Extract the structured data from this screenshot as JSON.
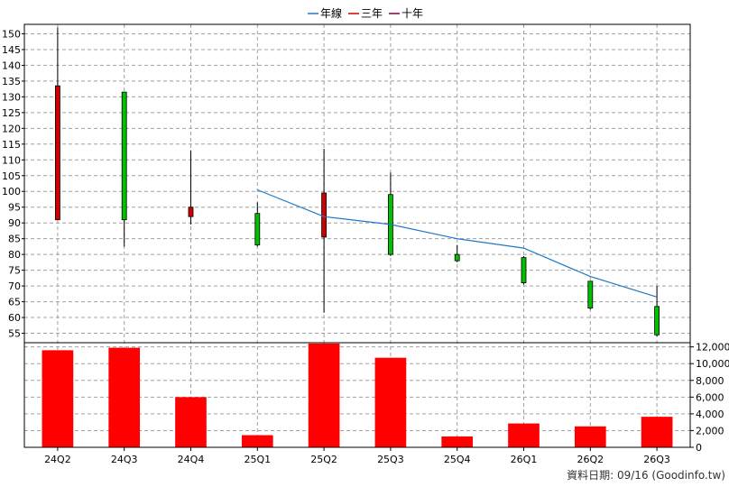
{
  "legend": [
    {
      "label": "年線",
      "color": "#1e78c8"
    },
    {
      "label": "三年",
      "color": "#d00000"
    },
    {
      "label": "十年",
      "color": "#800040"
    }
  ],
  "footer": "資料日期: 09/16  (Goodinfo.tw)",
  "chart_data": [
    {
      "type": "candlestick",
      "categories": [
        "24Q2",
        "24Q3",
        "24Q4",
        "25Q1",
        "25Q2",
        "25Q3",
        "25Q4",
        "26Q1",
        "26Q2",
        "26Q3"
      ],
      "ylim": [
        52,
        153
      ],
      "yticks": [
        55,
        60,
        65,
        70,
        75,
        80,
        85,
        90,
        95,
        100,
        105,
        110,
        115,
        120,
        125,
        130,
        135,
        140,
        145,
        150
      ],
      "grid": true,
      "up_color": "#d00000",
      "down_color": "#00c000",
      "candles": [
        {
          "open": 91,
          "close": 133.5,
          "high": 152,
          "low": 91
        },
        {
          "open": 131.5,
          "close": 91,
          "high": 131.5,
          "low": 82.5
        },
        {
          "open": 92,
          "close": 95,
          "high": 113,
          "low": 89.5
        },
        {
          "open": 93,
          "close": 83,
          "high": 96.5,
          "low": 82.5
        },
        {
          "open": 85.5,
          "close": 99.5,
          "high": 113.5,
          "low": 61.5
        },
        {
          "open": 99,
          "close": 80,
          "high": 106,
          "low": 79.5
        },
        {
          "open": 80,
          "close": 78,
          "high": 83,
          "low": 77.5
        },
        {
          "open": 79,
          "close": 71,
          "high": 79.5,
          "low": 70.5
        },
        {
          "open": 71.5,
          "close": 63,
          "high": 71.5,
          "low": 62.5
        },
        {
          "open": 63.5,
          "close": 54.5,
          "high": 70,
          "low": 54
        },
        {
          "_": "placeholder removed"
        }
      ],
      "series": [
        {
          "name": "年線",
          "color": "#1e78c8",
          "values": [
            null,
            null,
            null,
            100.5,
            92,
            89.5,
            85,
            82,
            73,
            66.5
          ]
        }
      ]
    },
    {
      "type": "bar",
      "categories": [
        "24Q2",
        "24Q3",
        "24Q4",
        "25Q1",
        "25Q2",
        "25Q3",
        "25Q4",
        "26Q1",
        "26Q2",
        "26Q3"
      ],
      "values": [
        11600,
        11900,
        6000,
        1450,
        12400,
        10700,
        1300,
        2850,
        2500,
        3650
      ],
      "ylim": [
        0,
        12500
      ],
      "yticks": [
        0,
        2000,
        4000,
        6000,
        8000,
        10000,
        12000
      ],
      "ytick_labels": [
        "0",
        "2,000",
        "4,000",
        "6,000",
        "8,000",
        "10,000",
        "12,000"
      ],
      "color": "#ff0000",
      "grid": true
    }
  ]
}
